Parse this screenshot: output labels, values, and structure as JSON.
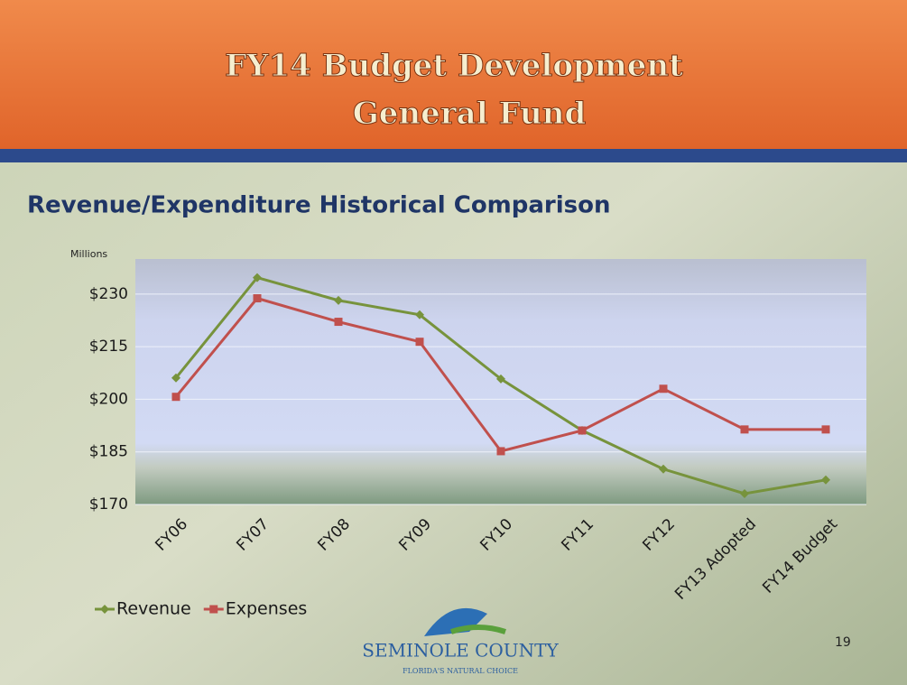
{
  "header": {
    "title_line1": "FY14 Budget Development",
    "title_line2": "General Fund"
  },
  "page_number": "19",
  "logo": {
    "name": "SEMINOLE COUNTY",
    "tagline": "FLORIDA'S NATURAL CHOICE"
  },
  "chart_data": {
    "type": "line",
    "title": "Revenue/Expenditure Historical Comparison",
    "y_axis_label": "Millions",
    "categories": [
      "FY06",
      "FY07",
      "FY08",
      "FY09",
      "FY10",
      "FY11",
      "FY12",
      "FY13 Adopted",
      "FY14 Budget"
    ],
    "series": [
      {
        "name": "Revenue",
        "color": "#77933c",
        "marker": "diamond",
        "values": [
          206.1,
          234.7,
          228.2,
          224.1,
          205.8,
          191.1,
          180.1,
          173.1,
          177
        ]
      },
      {
        "name": "Expenses",
        "color": "#c0504d",
        "marker": "square",
        "values": [
          200.7,
          228.8,
          222.1,
          216.4,
          185.2,
          191.1,
          203,
          191.4,
          191.4
        ]
      }
    ],
    "ylim": [
      170,
      240
    ],
    "yticks": [
      {
        "value": 170,
        "label": "$170"
      },
      {
        "value": 185,
        "label": "$185"
      },
      {
        "value": 200,
        "label": "$200"
      },
      {
        "value": 215,
        "label": "$215"
      },
      {
        "value": 230,
        "label": "$230"
      }
    ],
    "grid": true,
    "legend": "bottom-left"
  }
}
